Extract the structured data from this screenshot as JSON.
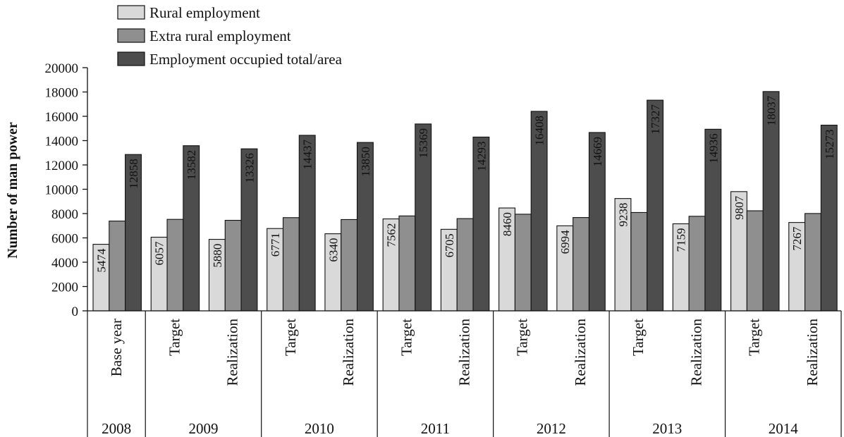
{
  "chart_data": {
    "type": "bar",
    "ylabel": "Number of man power",
    "ylim": [
      0,
      20000
    ],
    "yticks": [
      0,
      2000,
      4000,
      6000,
      8000,
      10000,
      12000,
      14000,
      16000,
      18000,
      20000
    ],
    "grid": false,
    "legend_position": "top-left",
    "groups": [
      {
        "year": "2008",
        "categories": [
          "Base year"
        ]
      },
      {
        "year": "2009",
        "categories": [
          "Target",
          "Realization"
        ]
      },
      {
        "year": "2010",
        "categories": [
          "Target",
          "Realization"
        ]
      },
      {
        "year": "2011",
        "categories": [
          "Target",
          "Realization"
        ]
      },
      {
        "year": "2012",
        "categories": [
          "Target",
          "Realization"
        ]
      },
      {
        "year": "2013",
        "categories": [
          "Target",
          "Realization"
        ]
      },
      {
        "year": "2014",
        "categories": [
          "Target",
          "Realization"
        ]
      }
    ],
    "categories": [
      "Base year",
      "Target",
      "Realization",
      "Target",
      "Realization",
      "Target",
      "Realization",
      "Target",
      "Realization",
      "Target",
      "Realization",
      "Target",
      "Realization"
    ],
    "series": [
      {
        "name": "Rural employment",
        "color": "#d9d9d9",
        "values": [
          5474,
          6057,
          5880,
          6771,
          6340,
          7562,
          6705,
          8460,
          6994,
          9238,
          7159,
          9807,
          7267
        ],
        "labels": [
          "5474",
          "6057",
          "5880",
          "6771",
          "6340",
          "7562",
          "6705",
          "8460",
          "6994",
          "9238",
          "7159",
          "9807",
          "7267"
        ]
      },
      {
        "name": "Extra rural employment",
        "color": "#8f8f8f",
        "values": [
          7384,
          7525,
          7446,
          7666,
          7510,
          7807,
          7588,
          7948,
          7675,
          8089,
          7777,
          8230,
          8006
        ]
      },
      {
        "name": "Employment occupied total/area",
        "color": "#4d4d4d",
        "values": [
          12858,
          13582,
          13326,
          14437,
          13850,
          15369,
          14293,
          16408,
          14669,
          17327,
          14936,
          18037,
          15273
        ],
        "labels": [
          "12858",
          "13582",
          "13326",
          "14437",
          "13850",
          "15369",
          "14293",
          "16408",
          "14669",
          "17327",
          "14936",
          "18037",
          "15273"
        ]
      }
    ]
  }
}
